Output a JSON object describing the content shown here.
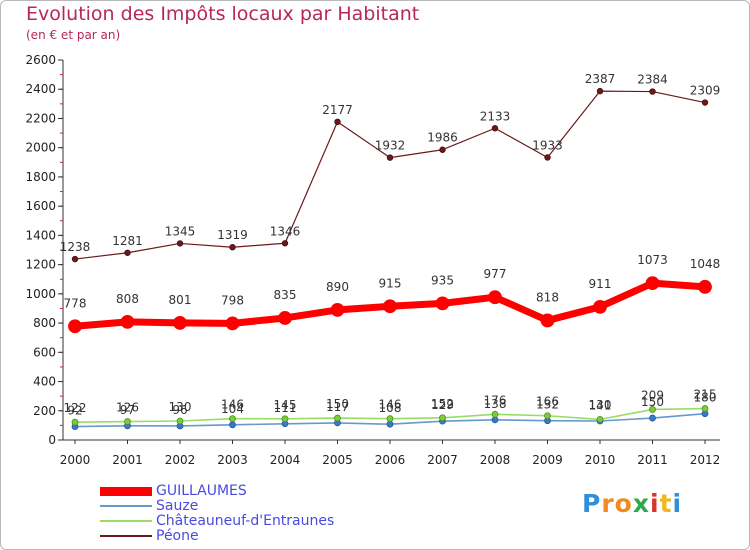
{
  "title": "Evolution des Impôts locaux par Habitant",
  "subtitle": "(en € et par an)",
  "chart_data": {
    "type": "line",
    "title": "Evolution des Impôts locaux par Habitant",
    "subtitle": "(en € et par an)",
    "xlabel": "",
    "ylabel": "",
    "x": [
      "2000",
      "2001",
      "2002",
      "2003",
      "2004",
      "2005",
      "2006",
      "2007",
      "2008",
      "2009",
      "2010",
      "2011",
      "2012"
    ],
    "ylim": [
      0,
      2600
    ],
    "yticks": [
      0,
      200,
      400,
      600,
      800,
      1000,
      1200,
      1400,
      1600,
      1800,
      2000,
      2200,
      2400,
      2600
    ],
    "grid": false,
    "legend_position": "bottom-left",
    "series": [
      {
        "name": "GUILLAUMES",
        "color": "#ff0000",
        "values": [
          778,
          808,
          801,
          798,
          835,
          890,
          915,
          935,
          977,
          818,
          911,
          1073,
          1048
        ]
      },
      {
        "name": "Sauze",
        "color": "#6699cc",
        "values": [
          92,
          97,
          96,
          104,
          111,
          117,
          108,
          129,
          138,
          132,
          130,
          150,
          180
        ]
      },
      {
        "name": "Châteauneuf-d'Entraunes",
        "color": "#99dd66",
        "values": [
          122,
          126,
          130,
          146,
          145,
          150,
          146,
          152,
          176,
          166,
          141,
          209,
          215
        ]
      },
      {
        "name": "Péone",
        "color": "#6b1a1a",
        "values": [
          1238,
          1281,
          1345,
          1319,
          1346,
          2177,
          1932,
          1986,
          2133,
          1933,
          2387,
          2384,
          2309
        ]
      }
    ]
  },
  "logo": {
    "letters": [
      "P",
      "r",
      "o",
      "x",
      "i",
      "t",
      "i"
    ],
    "colors": [
      "#2f8fd8",
      "#f08c1e",
      "#f08c1e",
      "#2fa84f",
      "#d8322f",
      "#f0b81e",
      "#2f8fd8"
    ]
  }
}
